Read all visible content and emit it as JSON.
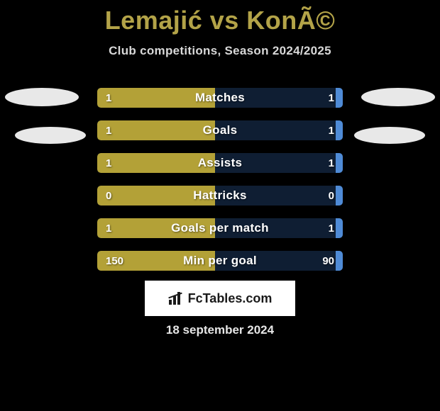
{
  "title": "Lemajić vs KonÃ©",
  "subtitle": "Club competitions, Season 2024/2025",
  "date": "18 september 2024",
  "badge_text": "FcTables.com",
  "colors": {
    "background": "#000000",
    "title": "#b3a348",
    "left_fill": "#b3a137",
    "right_fill": "#4f8bd6",
    "row_bg": "#0f1e33",
    "oval": "#e8e8e8"
  },
  "rows": [
    {
      "label": "Matches",
      "left_val": "1",
      "right_val": "1",
      "left_fill_pct": 48,
      "right_fill_pct": 3
    },
    {
      "label": "Goals",
      "left_val": "1",
      "right_val": "1",
      "left_fill_pct": 48,
      "right_fill_pct": 3
    },
    {
      "label": "Assists",
      "left_val": "1",
      "right_val": "1",
      "left_fill_pct": 48,
      "right_fill_pct": 3
    },
    {
      "label": "Hattricks",
      "left_val": "0",
      "right_val": "0",
      "left_fill_pct": 48,
      "right_fill_pct": 3
    },
    {
      "label": "Goals per match",
      "left_val": "1",
      "right_val": "1",
      "left_fill_pct": 48,
      "right_fill_pct": 3
    },
    {
      "label": "Min per goal",
      "left_val": "150",
      "right_val": "90",
      "left_fill_pct": 48,
      "right_fill_pct": 3
    }
  ]
}
